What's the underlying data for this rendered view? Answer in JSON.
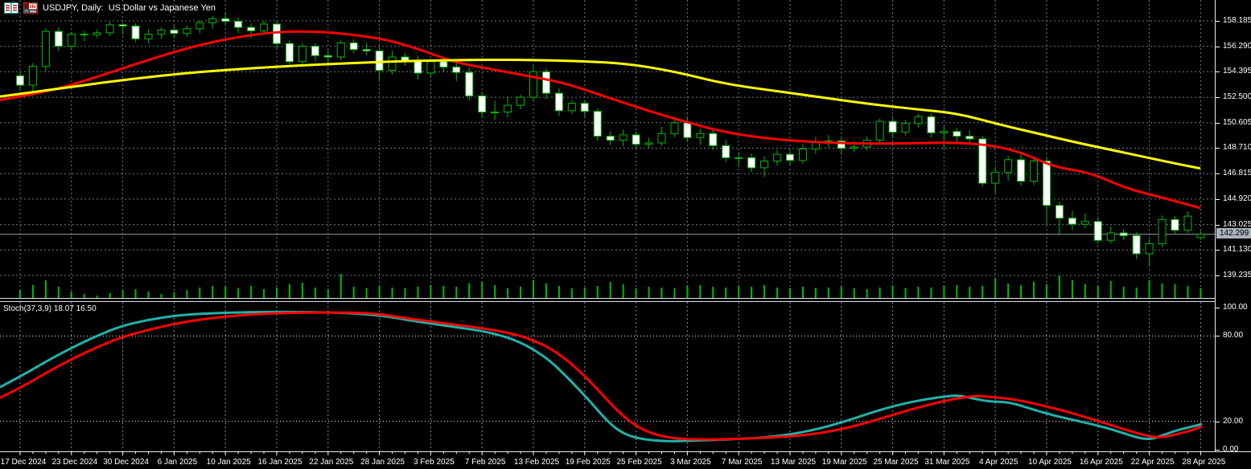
{
  "window": {
    "title": "USDJPY, Daily:  US Dollar vs Japanese Yen",
    "icons": [
      "tick-chart-icon",
      "chart-window-icon"
    ]
  },
  "colors": {
    "background": "#000000",
    "grid": "#6e7a86",
    "stoch_grid": "#7d8fb0",
    "candle_outline": "#00bb00",
    "bull_fill": "#000000",
    "bear_fill": "#ffffff",
    "volume": "#00bb00",
    "ma_fast": "#ff0000",
    "ma_slow": "#ffff00",
    "stoch_main": "#20b2aa",
    "stoch_signal": "#ff0000",
    "bid_line": "#99a2ac",
    "price_box_bg": "#a9b2bd",
    "axis_text": "#ffffff"
  },
  "chart_data": {
    "type": "candlestick",
    "symbol": "USDJPY",
    "timeframe": "Daily",
    "title": "USDJPY, Daily:  US Dollar vs Japanese Yen",
    "price_axis": {
      "ticks": [
        158.185,
        156.29,
        154.395,
        152.5,
        150.605,
        148.71,
        146.815,
        144.92,
        143.025,
        141.13,
        139.235
      ],
      "tick_labels": [
        "158.185",
        "156.290",
        "154.395",
        "152.500",
        "150.605",
        "148.710",
        "146.815",
        "144.920",
        "143.025",
        "141.130",
        "139.235"
      ],
      "current_price": 142.299,
      "current_price_label": "142.299"
    },
    "x_labels": [
      "17 Dec 2024",
      "23 Dec 2024",
      "30 Dec 2024",
      "6 Jan 2025",
      "10 Jan 2025",
      "16 Jan 2025",
      "22 Jan 2025",
      "28 Jan 2025",
      "3 Feb 2025",
      "7 Feb 2025",
      "13 Feb 2025",
      "19 Feb 2025",
      "25 Feb 2025",
      "3 Mar 2025",
      "7 Mar 2025",
      "13 Mar 2025",
      "19 Mar 2025",
      "25 Mar 2025",
      "31 Mar 2025",
      "4 Apr 2025",
      "10 Apr 2025",
      "16 Apr 2025",
      "22 Apr 2025",
      "28 Apr 2025"
    ],
    "bars_per_label": 4,
    "candles_ohlc": [
      [
        154.1,
        154.45,
        152.95,
        153.4
      ],
      [
        153.4,
        155.05,
        152.6,
        154.8
      ],
      [
        154.8,
        157.65,
        154.45,
        157.4
      ],
      [
        157.4,
        157.7,
        155.95,
        156.3
      ],
      [
        156.3,
        157.35,
        156.0,
        157.2
      ],
      [
        157.2,
        157.45,
        156.65,
        157.15
      ],
      [
        157.15,
        157.55,
        156.9,
        157.3
      ],
      [
        157.3,
        158.1,
        157.05,
        157.9
      ],
      [
        157.9,
        158.05,
        157.15,
        157.8
      ],
      [
        157.8,
        158.0,
        156.6,
        156.85
      ],
      [
        156.85,
        157.55,
        156.5,
        157.2
      ],
      [
        157.2,
        157.7,
        156.85,
        157.5
      ],
      [
        157.5,
        157.85,
        156.9,
        157.25
      ],
      [
        157.25,
        157.85,
        157.0,
        157.6
      ],
      [
        157.6,
        158.25,
        157.25,
        158.05
      ],
      [
        158.05,
        158.55,
        157.6,
        158.35
      ],
      [
        158.35,
        158.85,
        157.95,
        158.15
      ],
      [
        158.15,
        158.45,
        157.25,
        157.7
      ],
      [
        157.7,
        158.0,
        156.9,
        157.45
      ],
      [
        157.45,
        158.2,
        157.15,
        157.95
      ],
      [
        157.95,
        158.1,
        156.1,
        156.5
      ],
      [
        156.5,
        156.75,
        154.95,
        155.15
      ],
      [
        155.15,
        156.55,
        155.0,
        156.3
      ],
      [
        156.3,
        156.5,
        155.2,
        155.6
      ],
      [
        155.6,
        156.0,
        154.75,
        155.5
      ],
      [
        155.5,
        156.75,
        155.25,
        156.55
      ],
      [
        156.55,
        156.8,
        155.75,
        156.05
      ],
      [
        156.05,
        156.55,
        155.6,
        155.95
      ],
      [
        155.95,
        156.25,
        153.7,
        154.5
      ],
      [
        154.5,
        155.95,
        154.2,
        155.5
      ],
      [
        155.5,
        155.8,
        154.85,
        155.2
      ],
      [
        155.2,
        155.6,
        153.8,
        154.3
      ],
      [
        154.3,
        155.35,
        154.0,
        155.15
      ],
      [
        155.15,
        155.5,
        154.35,
        154.75
      ],
      [
        154.75,
        155.1,
        153.7,
        154.35
      ],
      [
        154.35,
        154.75,
        152.25,
        152.6
      ],
      [
        152.6,
        152.9,
        150.95,
        151.4
      ],
      [
        151.4,
        152.25,
        150.8,
        151.4
      ],
      [
        151.4,
        152.55,
        151.0,
        151.9
      ],
      [
        151.9,
        152.7,
        151.6,
        152.5
      ],
      [
        152.5,
        154.8,
        152.25,
        154.4
      ],
      [
        154.4,
        154.65,
        152.35,
        152.8
      ],
      [
        152.8,
        153.15,
        151.1,
        151.5
      ],
      [
        151.5,
        152.3,
        151.25,
        152.05
      ],
      [
        152.05,
        152.3,
        151.05,
        151.45
      ],
      [
        151.45,
        151.7,
        149.25,
        149.6
      ],
      [
        149.6,
        149.95,
        148.95,
        149.3
      ],
      [
        149.3,
        150.1,
        148.85,
        149.7
      ],
      [
        149.7,
        149.95,
        148.6,
        149.0
      ],
      [
        149.0,
        149.5,
        148.7,
        149.1
      ],
      [
        149.1,
        150.3,
        148.9,
        149.8
      ],
      [
        149.8,
        150.95,
        149.55,
        150.6
      ],
      [
        150.6,
        151.0,
        149.2,
        149.5
      ],
      [
        149.5,
        150.15,
        148.95,
        149.8
      ],
      [
        149.8,
        150.1,
        148.55,
        148.9
      ],
      [
        148.9,
        149.35,
        147.7,
        148.0
      ],
      [
        148.0,
        148.4,
        147.3,
        148.0
      ],
      [
        148.0,
        148.3,
        146.95,
        147.25
      ],
      [
        147.25,
        148.1,
        146.55,
        147.75
      ],
      [
        147.75,
        148.6,
        147.4,
        148.25
      ],
      [
        148.25,
        148.55,
        147.4,
        147.8
      ],
      [
        147.8,
        149.0,
        147.55,
        148.65
      ],
      [
        148.65,
        149.55,
        148.3,
        149.2
      ],
      [
        149.2,
        149.7,
        148.75,
        149.25
      ],
      [
        149.25,
        149.5,
        148.25,
        148.7
      ],
      [
        148.7,
        149.25,
        148.4,
        148.8
      ],
      [
        148.8,
        149.6,
        148.55,
        149.3
      ],
      [
        149.3,
        150.9,
        149.0,
        150.7
      ],
      [
        150.7,
        151.0,
        149.55,
        149.9
      ],
      [
        149.9,
        150.8,
        149.65,
        150.55
      ],
      [
        150.55,
        151.25,
        150.25,
        151.05
      ],
      [
        151.05,
        151.3,
        149.5,
        149.85
      ],
      [
        149.85,
        150.35,
        148.7,
        149.95
      ],
      [
        149.95,
        150.25,
        149.15,
        149.6
      ],
      [
        149.6,
        150.05,
        148.95,
        149.4
      ],
      [
        149.4,
        149.65,
        145.85,
        146.1
      ],
      [
        146.1,
        147.3,
        145.4,
        146.9
      ],
      [
        146.9,
        148.15,
        146.3,
        147.85
      ],
      [
        147.85,
        148.3,
        145.95,
        146.25
      ],
      [
        146.25,
        148.1,
        145.95,
        147.75
      ],
      [
        147.75,
        148.0,
        142.9,
        144.45
      ],
      [
        144.45,
        144.75,
        142.25,
        143.5
      ],
      [
        143.5,
        144.05,
        142.6,
        143.05
      ],
      [
        143.05,
        143.85,
        142.75,
        143.25
      ],
      [
        143.25,
        143.5,
        141.6,
        141.85
      ],
      [
        141.85,
        142.9,
        141.6,
        142.4
      ],
      [
        142.4,
        142.7,
        141.85,
        142.2
      ],
      [
        142.2,
        142.45,
        140.45,
        140.85
      ],
      [
        140.85,
        141.95,
        139.9,
        141.6
      ],
      [
        141.6,
        143.7,
        141.35,
        143.4
      ],
      [
        143.4,
        143.65,
        142.35,
        142.6
      ],
      [
        142.6,
        144.0,
        142.4,
        143.65
      ],
      [
        142.05,
        142.55,
        141.9,
        142.3
      ]
    ],
    "volume": [
      10,
      16,
      22,
      14,
      8,
      5,
      3,
      6,
      9,
      11,
      8,
      5,
      7,
      10,
      13,
      15,
      14,
      12,
      15,
      11,
      13,
      17,
      19,
      13,
      11,
      30,
      14,
      12,
      15,
      13,
      12,
      14,
      16,
      15,
      14,
      18,
      20,
      16,
      12,
      14,
      22,
      18,
      15,
      12,
      13,
      15,
      20,
      17,
      12,
      14,
      13,
      12,
      15,
      16,
      14,
      13,
      15,
      14,
      16,
      13,
      12,
      14,
      12,
      13,
      14,
      12,
      11,
      13,
      15,
      12,
      14,
      13,
      15,
      16,
      14,
      15,
      24,
      18,
      16,
      20,
      17,
      28,
      22,
      17,
      15,
      21,
      14,
      13,
      22,
      18,
      17,
      15,
      12
    ],
    "ma_fast_red": [
      [
        0,
        152.3
      ],
      [
        60,
        152.9
      ],
      [
        120,
        154.0
      ],
      [
        180,
        155.2
      ],
      [
        240,
        156.3
      ],
      [
        300,
        157.05
      ],
      [
        350,
        157.4
      ],
      [
        400,
        157.38
      ],
      [
        440,
        157.15
      ],
      [
        480,
        156.8
      ],
      [
        520,
        156.1
      ],
      [
        565,
        155.1
      ],
      [
        610,
        154.6
      ],
      [
        650,
        154.15
      ],
      [
        700,
        153.6
      ],
      [
        750,
        152.6
      ],
      [
        800,
        151.6
      ],
      [
        850,
        150.7
      ],
      [
        900,
        149.9
      ],
      [
        950,
        149.45
      ],
      [
        1000,
        149.2
      ],
      [
        1060,
        149.05
      ],
      [
        1120,
        149.05
      ],
      [
        1180,
        149.15
      ],
      [
        1230,
        148.95
      ],
      [
        1270,
        148.4
      ],
      [
        1310,
        147.3
      ],
      [
        1355,
        146.9
      ],
      [
        1400,
        145.7
      ],
      [
        1450,
        144.95
      ],
      [
        1492,
        144.25
      ]
    ],
    "ma_slow_yellow": [
      [
        0,
        152.55
      ],
      [
        80,
        153.2
      ],
      [
        160,
        153.85
      ],
      [
        240,
        154.35
      ],
      [
        320,
        154.7
      ],
      [
        400,
        154.95
      ],
      [
        480,
        155.15
      ],
      [
        560,
        155.27
      ],
      [
        640,
        155.3
      ],
      [
        720,
        155.2
      ],
      [
        780,
        155.0
      ],
      [
        840,
        154.4
      ],
      [
        900,
        153.5
      ],
      [
        960,
        153.0
      ],
      [
        1020,
        152.5
      ],
      [
        1080,
        152.0
      ],
      [
        1140,
        151.6
      ],
      [
        1190,
        151.3
      ],
      [
        1240,
        150.5
      ],
      [
        1290,
        149.8
      ],
      [
        1340,
        149.1
      ],
      [
        1400,
        148.35
      ],
      [
        1450,
        147.7
      ],
      [
        1492,
        147.2
      ]
    ],
    "stochastic": {
      "label": "Stoch(37,3,9)",
      "main_value": "18.07",
      "signal_value": "16.50",
      "axis_ticks": [
        100.0,
        80.0,
        20.0,
        0.0
      ],
      "axis_tick_labels": [
        "100.00",
        "80.00",
        "20.00",
        "0.00"
      ],
      "levels": [
        80,
        20
      ],
      "main": [
        [
          0,
          44
        ],
        [
          30,
          53
        ],
        [
          60,
          63
        ],
        [
          90,
          72
        ],
        [
          120,
          80
        ],
        [
          150,
          87
        ],
        [
          185,
          91.5
        ],
        [
          220,
          94.5
        ],
        [
          260,
          96
        ],
        [
          310,
          96.8
        ],
        [
          360,
          97
        ],
        [
          420,
          96.5
        ],
        [
          460,
          95.2
        ],
        [
          490,
          93
        ],
        [
          515,
          90.5
        ],
        [
          545,
          88
        ],
        [
          575,
          85.5
        ],
        [
          600,
          83.5
        ],
        [
          625,
          80
        ],
        [
          645,
          76
        ],
        [
          665,
          70
        ],
        [
          685,
          62
        ],
        [
          705,
          51
        ],
        [
          722,
          41
        ],
        [
          738,
          31
        ],
        [
          752,
          22
        ],
        [
          768,
          13.5
        ],
        [
          790,
          8
        ],
        [
          826,
          5.8
        ],
        [
          858,
          6.3
        ],
        [
          890,
          7
        ],
        [
          920,
          7.6
        ],
        [
          952,
          8.6
        ],
        [
          985,
          11
        ],
        [
          1016,
          14.5
        ],
        [
          1048,
          19.5
        ],
        [
          1080,
          25.5
        ],
        [
          1112,
          31
        ],
        [
          1145,
          35
        ],
        [
          1175,
          37.5
        ],
        [
          1192,
          38.3
        ],
        [
          1210,
          36
        ],
        [
          1228,
          34
        ],
        [
          1248,
          33.6
        ],
        [
          1262,
          32.3
        ],
        [
          1277,
          29.5
        ],
        [
          1310,
          24
        ],
        [
          1342,
          20
        ],
        [
          1375,
          15.5
        ],
        [
          1400,
          11
        ],
        [
          1418,
          7.8
        ],
        [
          1432,
          7.5
        ],
        [
          1448,
          10.8
        ],
        [
          1462,
          13.5
        ],
        [
          1478,
          15.8
        ],
        [
          1494,
          18.07
        ]
      ],
      "signal": [
        [
          0,
          36.5
        ],
        [
          30,
          45
        ],
        [
          60,
          55
        ],
        [
          90,
          64
        ],
        [
          120,
          72
        ],
        [
          150,
          79
        ],
        [
          185,
          84.5
        ],
        [
          220,
          89
        ],
        [
          260,
          92.5
        ],
        [
          310,
          95.3
        ],
        [
          360,
          96.4
        ],
        [
          420,
          96.6
        ],
        [
          455,
          96.2
        ],
        [
          480,
          94.8
        ],
        [
          505,
          92.5
        ],
        [
          535,
          90.3
        ],
        [
          565,
          88
        ],
        [
          595,
          85.8
        ],
        [
          620,
          83.5
        ],
        [
          645,
          80.5
        ],
        [
          665,
          76.5
        ],
        [
          685,
          71
        ],
        [
          705,
          63
        ],
        [
          725,
          53
        ],
        [
          742,
          43
        ],
        [
          758,
          33
        ],
        [
          775,
          23.5
        ],
        [
          795,
          15
        ],
        [
          820,
          9.5
        ],
        [
          850,
          7.3
        ],
        [
          890,
          7.2
        ],
        [
          930,
          7.9
        ],
        [
          965,
          8.8
        ],
        [
          1000,
          10.2
        ],
        [
          1032,
          12.8
        ],
        [
          1065,
          17
        ],
        [
          1098,
          22.5
        ],
        [
          1130,
          28
        ],
        [
          1160,
          32.5
        ],
        [
          1188,
          36
        ],
        [
          1212,
          38
        ],
        [
          1232,
          37.2
        ],
        [
          1255,
          35.8
        ],
        [
          1278,
          33.5
        ],
        [
          1300,
          30.5
        ],
        [
          1325,
          27
        ],
        [
          1352,
          22.5
        ],
        [
          1380,
          17.5
        ],
        [
          1405,
          13
        ],
        [
          1425,
          9.8
        ],
        [
          1440,
          8.6
        ],
        [
          1455,
          9.8
        ],
        [
          1470,
          12
        ],
        [
          1482,
          13.8
        ],
        [
          1494,
          16.5
        ]
      ]
    }
  }
}
